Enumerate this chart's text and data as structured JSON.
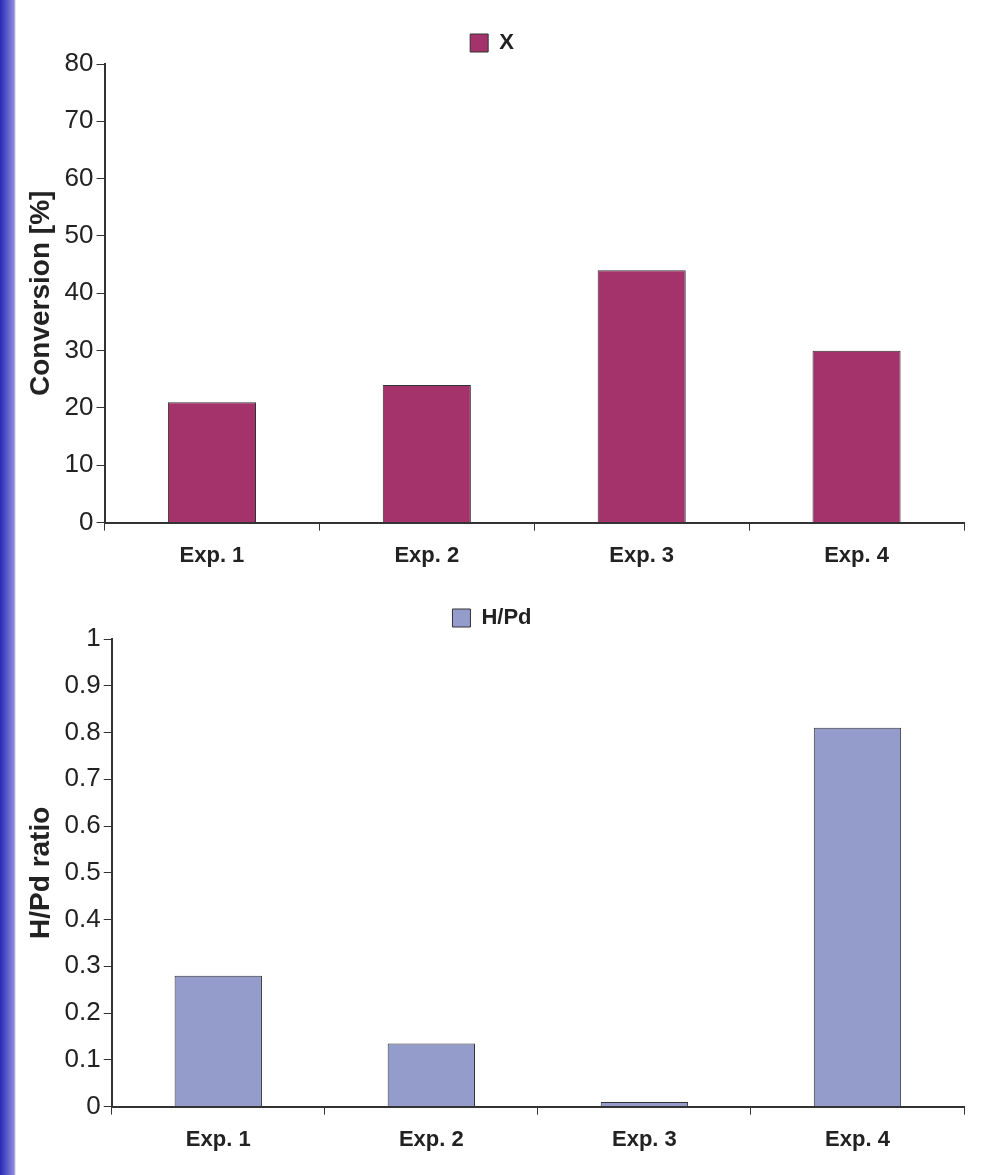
{
  "chart_data": [
    {
      "type": "bar",
      "ylabel": "Conversion [%]",
      "categories": [
        "Exp. 1",
        "Exp. 2",
        "Exp. 3",
        "Exp. 4"
      ],
      "series": [
        {
          "name": "X",
          "color": "#a3336a",
          "values": [
            21,
            24,
            44,
            30
          ]
        }
      ],
      "ylim": [
        0,
        80
      ],
      "yticks": [
        0,
        10,
        20,
        30,
        40,
        50,
        60,
        70,
        80
      ],
      "grid": false,
      "legend": "top"
    },
    {
      "type": "bar",
      "ylabel": "H/Pd ratio",
      "categories": [
        "Exp. 1",
        "Exp. 2",
        "Exp. 3",
        "Exp. 4"
      ],
      "series": [
        {
          "name": "H/Pd",
          "color": "#949ccc",
          "values": [
            0.28,
            0.135,
            0.01,
            0.81
          ]
        }
      ],
      "ylim": [
        0,
        1
      ],
      "yticks": [
        0,
        0.1,
        0.2,
        0.3,
        0.4,
        0.5,
        0.6,
        0.7,
        0.8,
        0.9,
        1
      ],
      "grid": false,
      "legend": "top"
    }
  ]
}
